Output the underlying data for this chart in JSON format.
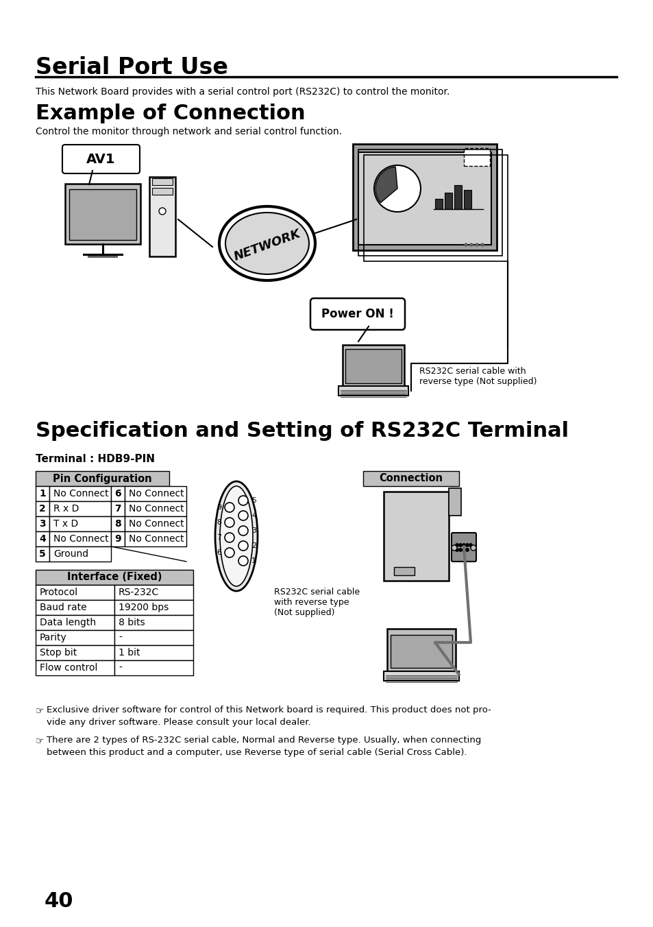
{
  "title1": "Serial Port Use",
  "subtitle1": "This Network Board provides with a serial control port (RS232C) to control the monitor.",
  "title2": "Example of Connection",
  "subtitle2": "Control the monitor through network and serial control function.",
  "title3": "Specification and Setting of RS232C Terminal",
  "terminal_label": "Terminal : HDB9-PIN",
  "pin_config_header": "Pin Configuration",
  "connection_header": "Connection",
  "interface_header": "Interface (Fixed)",
  "pin_rows": [
    [
      "1",
      "No Connect",
      "6",
      "No Connect"
    ],
    [
      "2",
      "R x D",
      "7",
      "No Connect"
    ],
    [
      "3",
      "T x D",
      "8",
      "No Connect"
    ],
    [
      "4",
      "No Connect",
      "9",
      "No Connect"
    ],
    [
      "5",
      "Ground",
      "",
      ""
    ]
  ],
  "interface_rows": [
    [
      "Protocol",
      "RS-232C"
    ],
    [
      "Baud rate",
      "19200 bps"
    ],
    [
      "Data length",
      "8 bits"
    ],
    [
      "Parity",
      "-"
    ],
    [
      "Stop bit",
      "1 bit"
    ],
    [
      "Flow control",
      "-"
    ]
  ],
  "note1": "Exclusive driver software for control of this Network board is required. This product does not pro-\nvide any driver software. Please consult your local dealer.",
  "note2": "There are 2 types of RS-232C serial cable, Normal and Reverse type. Usually, when connecting\nbetween this product and a computer, use Reverse type of serial cable (Serial Cross Cable).",
  "page_number": "40",
  "rs232c_note_top1": "RS232C serial cable with",
  "rs232c_note_top2": "reverse type (Not supplied)",
  "rs232c_note_bot1": "RS232C serial cable",
  "rs232c_note_bot2": "with reverse type",
  "rs232c_note_bot3": "(Not supplied)",
  "power_on": "Power ON !",
  "av1": "AV1",
  "network": "NETWORK",
  "bg_color": "#ffffff",
  "text_color": "#000000",
  "header_bg": "#c0c0c0",
  "line_color": "#000000"
}
